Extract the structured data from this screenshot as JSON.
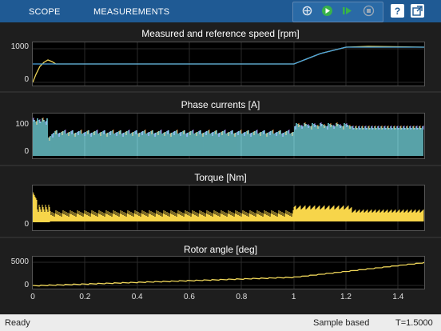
{
  "toolbar": {
    "tabs": [
      {
        "label": "SCOPE"
      },
      {
        "label": "MEASUREMENTS"
      }
    ],
    "icons": [
      "highlight-signal-icon",
      "run-icon",
      "step-forward-icon",
      "stop-icon",
      "help-icon",
      "undock-icon"
    ]
  },
  "plots": [
    {
      "title": "Measured and reference speed [rpm]",
      "yticks": [
        "1000",
        "0"
      ]
    },
    {
      "title": "Phase currents [A]",
      "yticks": [
        "100",
        "0"
      ]
    },
    {
      "title": "Torque [Nm]",
      "yticks": [
        "0"
      ]
    },
    {
      "title": "Rotor angle [deg]",
      "yticks": [
        "5000",
        "0"
      ]
    }
  ],
  "xaxis": {
    "ticks": [
      "0",
      "0.2",
      "0.4",
      "0.6",
      "0.8",
      "1",
      "1.2",
      "1.4"
    ],
    "xlim": [
      0,
      1.5
    ]
  },
  "colors": {
    "speed_ref": "#4aa3df",
    "speed_meas": "#f0d75a",
    "torque": "#f7d54a",
    "angle": "#f0d75a",
    "phase_a": "#7ee7ef",
    "phase_b": "#9d6dd6",
    "phase_c": "#e58a3a",
    "phase_d": "#8fd14f"
  },
  "status": {
    "left": "Ready",
    "mode": "Sample based",
    "time": "T=1.5000"
  }
}
